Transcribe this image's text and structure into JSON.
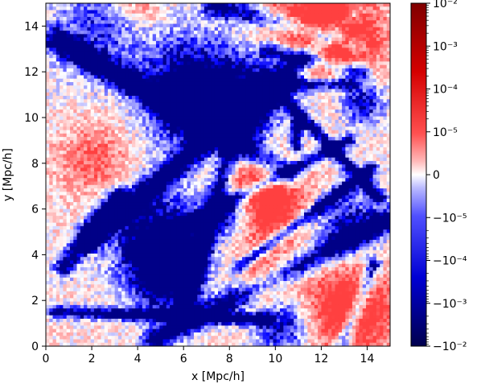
{
  "chart_data": {
    "type": "heatmap",
    "title": "",
    "xlabel": "x [Mpc/h]",
    "ylabel": "y [Mpc/h]",
    "xlim": [
      0,
      15
    ],
    "ylim": [
      0,
      15
    ],
    "x_ticks": [
      0,
      2,
      4,
      6,
      8,
      10,
      12,
      14
    ],
    "y_ticks": [
      0,
      2,
      4,
      6,
      8,
      10,
      12,
      14
    ],
    "colormap": "seismic",
    "colorbar": {
      "scale": "symlog",
      "range": [
        -0.01,
        0.01
      ],
      "ticks": [
        {
          "value": 0.01,
          "label": "10⁻²"
        },
        {
          "value": 0.001,
          "label": "10⁻³"
        },
        {
          "value": 0.0001,
          "label": "10⁻⁴"
        },
        {
          "value": 1e-05,
          "label": "10⁻⁵"
        },
        {
          "value": 0,
          "label": "0"
        },
        {
          "value": -1e-05,
          "label": "−10⁻⁵"
        },
        {
          "value": -0.0001,
          "label": "−10⁻⁴"
        },
        {
          "value": -0.001,
          "label": "−10⁻³"
        },
        {
          "value": -0.01,
          "label": "−10⁻²"
        }
      ],
      "colors": {
        "max": "#800000",
        "positive": "#ff0000",
        "zero": "#ffffff",
        "negative": "#0000ff",
        "min": "#00004d"
      }
    },
    "legend": "none",
    "grid": false
  }
}
